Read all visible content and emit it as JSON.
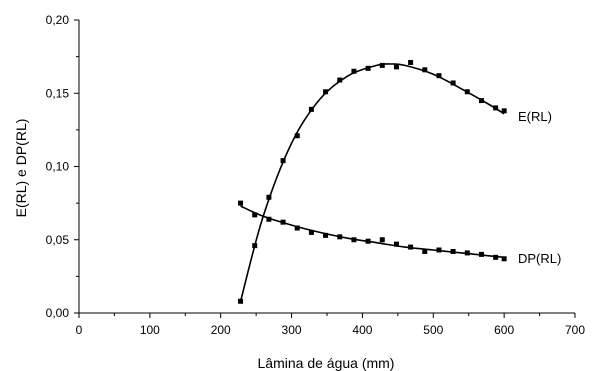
{
  "chart_data": {
    "type": "scatter",
    "xlabel": "Lâmina de água (mm)",
    "ylabel": "E(RL) e DP(RL)",
    "xlim": [
      0,
      700
    ],
    "ylim": [
      0,
      0.2
    ],
    "xticks": [
      0,
      100,
      200,
      300,
      400,
      500,
      600,
      700
    ],
    "xtick_labels": [
      "0",
      "100",
      "200",
      "300",
      "400",
      "500",
      "600",
      "700"
    ],
    "yticks": [
      0,
      0.05,
      0.1,
      0.15,
      0.2
    ],
    "ytick_labels": [
      "0,00",
      "0,05",
      "0,10",
      "0,15",
      "0,20"
    ],
    "grid": false,
    "series": [
      {
        "name": "E(RL)",
        "marker": "square",
        "x": [
          228,
          248,
          268,
          288,
          308,
          328,
          348,
          368,
          388,
          408,
          428,
          448,
          468,
          488,
          508,
          528,
          548,
          568,
          588,
          600
        ],
        "y": [
          0.008,
          0.046,
          0.079,
          0.104,
          0.121,
          0.139,
          0.151,
          0.159,
          0.165,
          0.167,
          0.169,
          0.168,
          0.171,
          0.166,
          0.162,
          0.157,
          0.151,
          0.145,
          0.14,
          0.138
        ],
        "fit_x": [
          228,
          260,
          300,
          340,
          380,
          420,
          440,
          460,
          500,
          540,
          580,
          600
        ],
        "fit_y": [
          0.008,
          0.066,
          0.116,
          0.146,
          0.162,
          0.169,
          0.17,
          0.169,
          0.163,
          0.153,
          0.142,
          0.136
        ]
      },
      {
        "name": "DP(RL)",
        "marker": "square",
        "x": [
          228,
          248,
          268,
          288,
          308,
          328,
          348,
          368,
          388,
          408,
          428,
          448,
          468,
          488,
          508,
          528,
          548,
          568,
          588,
          600
        ],
        "y": [
          0.075,
          0.067,
          0.064,
          0.062,
          0.058,
          0.055,
          0.053,
          0.052,
          0.05,
          0.049,
          0.05,
          0.047,
          0.045,
          0.042,
          0.043,
          0.042,
          0.041,
          0.04,
          0.038,
          0.037
        ],
        "fit_x": [
          228,
          260,
          300,
          340,
          380,
          420,
          460,
          500,
          540,
          580,
          600
        ],
        "fit_y": [
          0.073,
          0.066,
          0.06,
          0.055,
          0.051,
          0.048,
          0.045,
          0.043,
          0.041,
          0.039,
          0.038
        ]
      }
    ]
  }
}
